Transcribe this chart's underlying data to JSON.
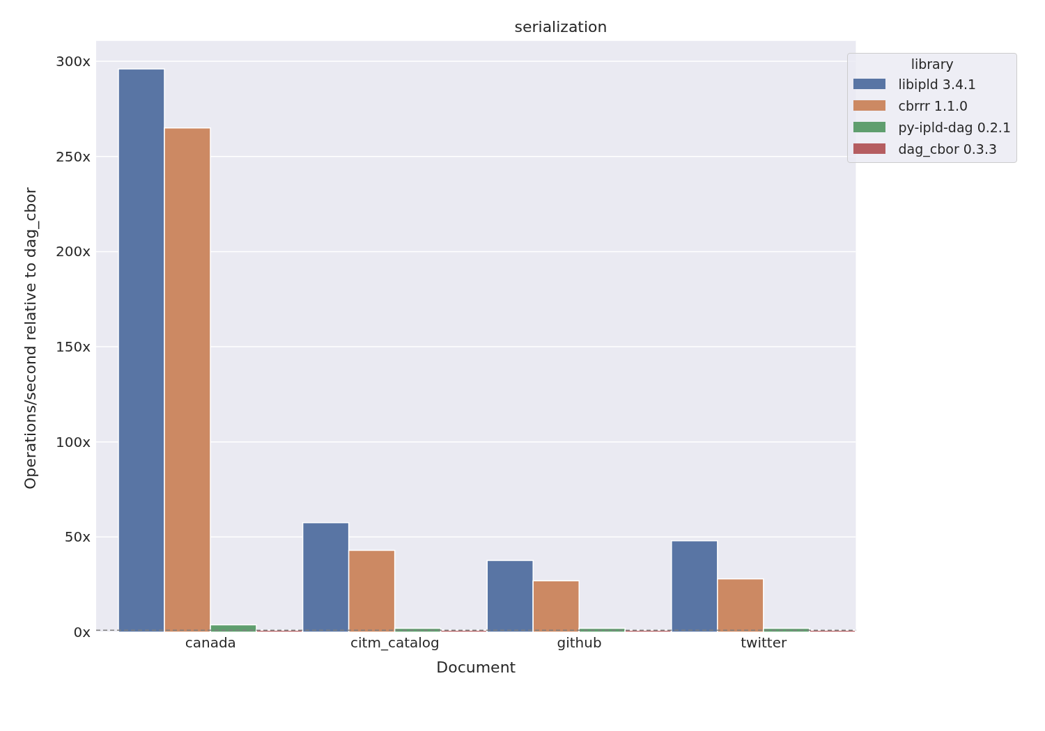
{
  "chart_data": {
    "type": "bar",
    "title": "serialization",
    "xlabel": "Document",
    "ylabel": "Operations/second relative to dag_cbor",
    "legend_title": "library",
    "categories": [
      "canada",
      "citm_catalog",
      "github",
      "twitter"
    ],
    "series": [
      {
        "name": "libipld 3.4.1",
        "color": "#5975a4",
        "values": [
          296,
          57.5,
          37.7,
          48
        ]
      },
      {
        "name": "cbrrr 1.1.0",
        "color": "#cc8963",
        "values": [
          265,
          43,
          27,
          28
        ]
      },
      {
        "name": "py-ipld-dag 0.2.1",
        "color": "#5f9e6e",
        "values": [
          3.8,
          2,
          2,
          2
        ]
      },
      {
        "name": "dag_cbor 0.3.3",
        "color": "#b55d60",
        "values": [
          1,
          1,
          1,
          1
        ]
      }
    ],
    "ylim": [
      0,
      311
    ],
    "yticks": [
      {
        "value": 0,
        "label": "0x"
      },
      {
        "value": 50,
        "label": "50x"
      },
      {
        "value": 100,
        "label": "100x"
      },
      {
        "value": 150,
        "label": "150x"
      },
      {
        "value": 200,
        "label": "200x"
      },
      {
        "value": 250,
        "label": "250x"
      },
      {
        "value": 300,
        "label": "300x"
      }
    ],
    "ref_lines": [
      {
        "axis": "y",
        "value": 1,
        "color": "#808080",
        "line_style": "dashed"
      }
    ],
    "grid": "y",
    "legend": "top right"
  }
}
